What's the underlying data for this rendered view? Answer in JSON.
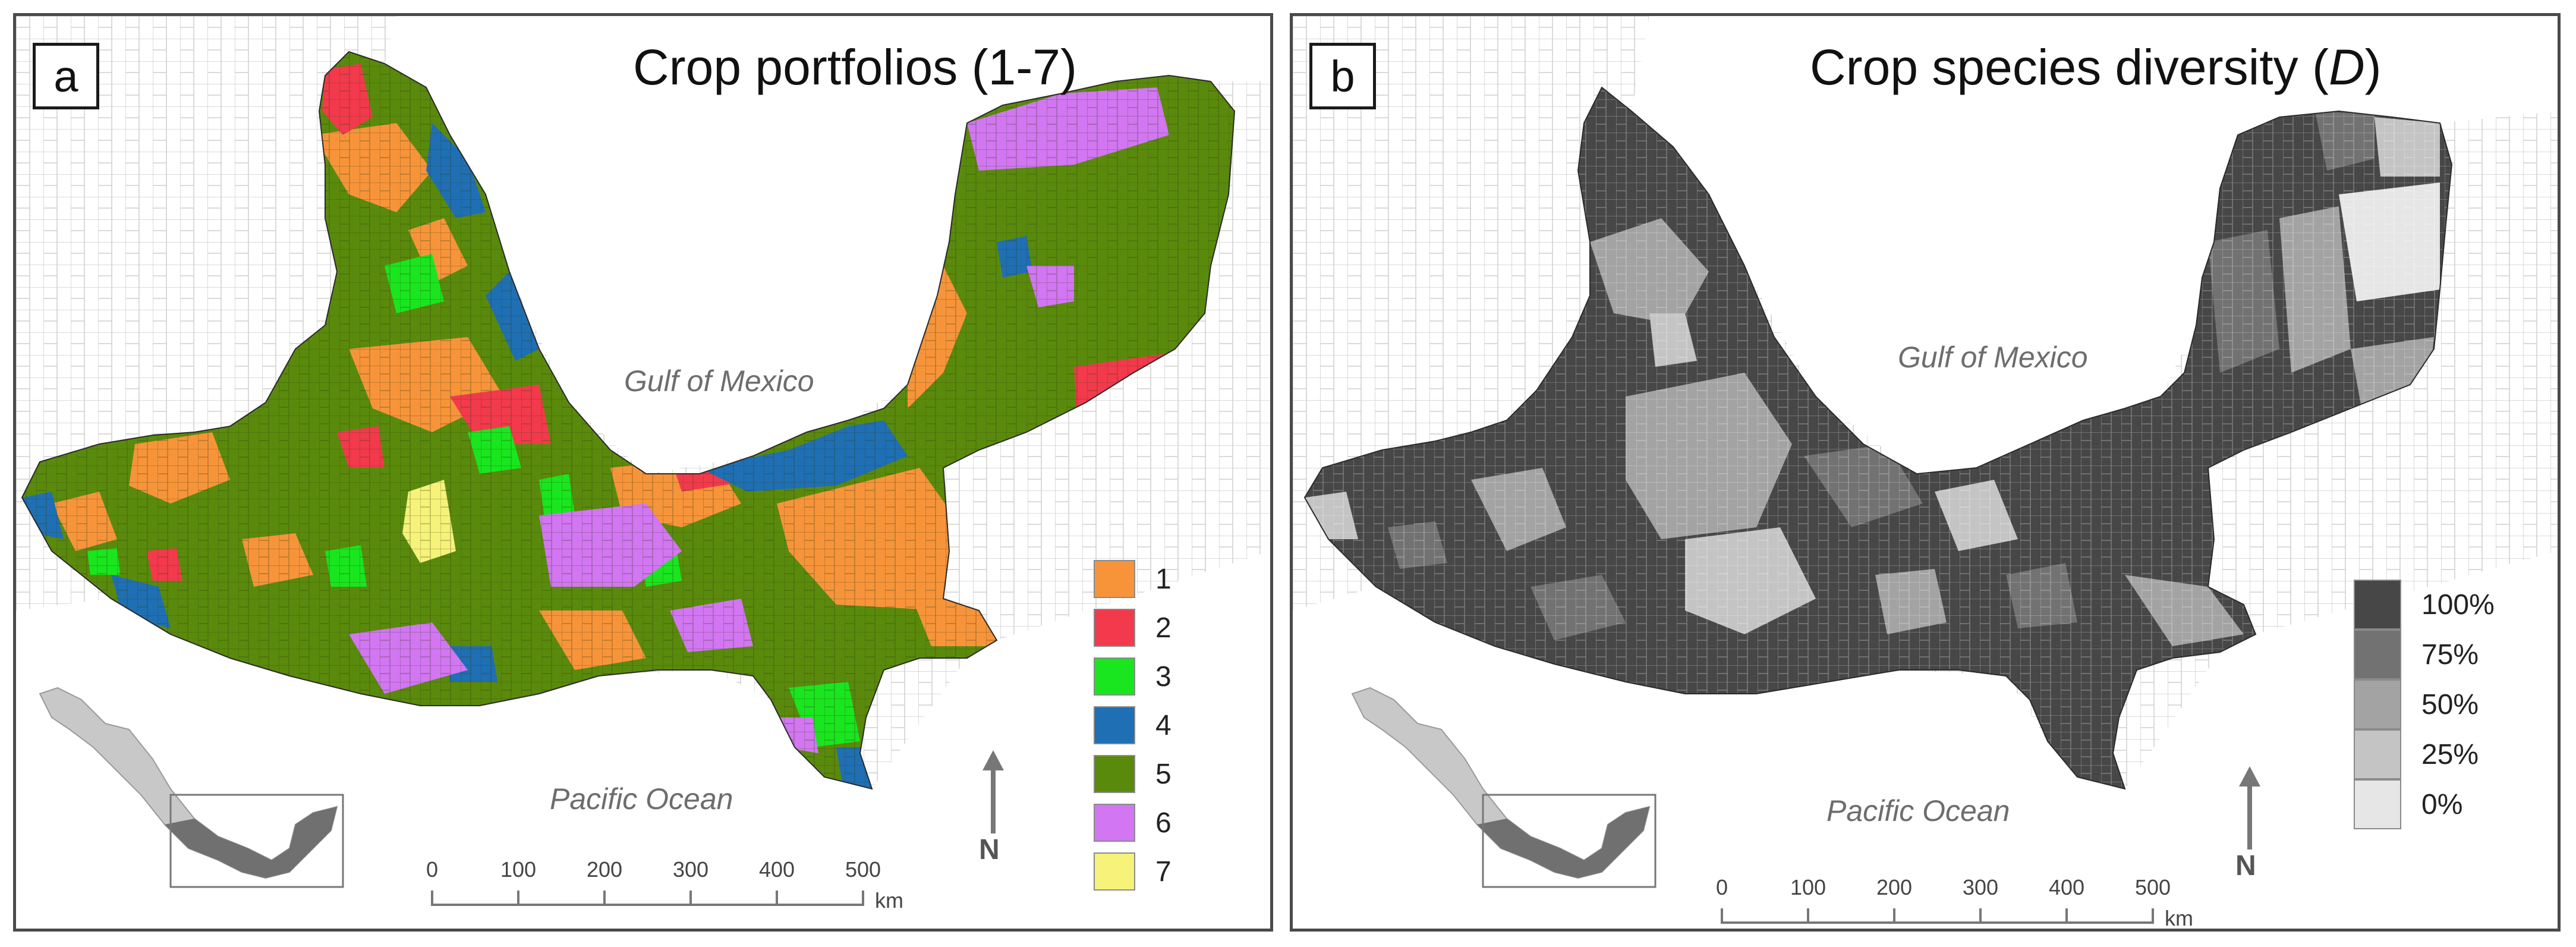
{
  "panel_a": {
    "letter": "a",
    "title": "Crop portfolios (1-7)",
    "gulf_label": "Gulf of Mexico",
    "ocean_label": "Pacific Ocean",
    "legend": [
      {
        "label": "1",
        "color": "#f7943a"
      },
      {
        "label": "2",
        "color": "#f23a4c"
      },
      {
        "label": "3",
        "color": "#19e61e"
      },
      {
        "label": "4",
        "color": "#1f6fb4"
      },
      {
        "label": "5",
        "color": "#5a8a0c"
      },
      {
        "label": "6",
        "color": "#d276f2"
      },
      {
        "label": "7",
        "color": "#f6f27a"
      }
    ],
    "scale": {
      "ticks": [
        "0",
        "100",
        "200",
        "300",
        "400",
        "500"
      ],
      "unit": "km"
    },
    "north": "N"
  },
  "panel_b": {
    "letter": "b",
    "title_main": "Crop species diversity (",
    "title_var": "D",
    "title_end": ")",
    "gulf_label": "Gulf of Mexico",
    "ocean_label": "Pacific Ocean",
    "legend": [
      {
        "label": "100%",
        "color": "#474747"
      },
      {
        "label": "75%",
        "color": "#727272"
      },
      {
        "label": "50%",
        "color": "#a3a3a3"
      },
      {
        "label": "25%",
        "color": "#c4c4c4"
      },
      {
        "label": "0%",
        "color": "#e6e6e6"
      }
    ],
    "scale": {
      "ticks": [
        "0",
        "100",
        "200",
        "300",
        "400",
        "500"
      ],
      "unit": "km"
    },
    "north": "N"
  },
  "map_colors": {
    "background_municipality_fill": "#ffffff",
    "background_municipality_stroke": "#c8c8c8",
    "inset_country": "#c8c8c8",
    "inset_region": "#707070"
  }
}
